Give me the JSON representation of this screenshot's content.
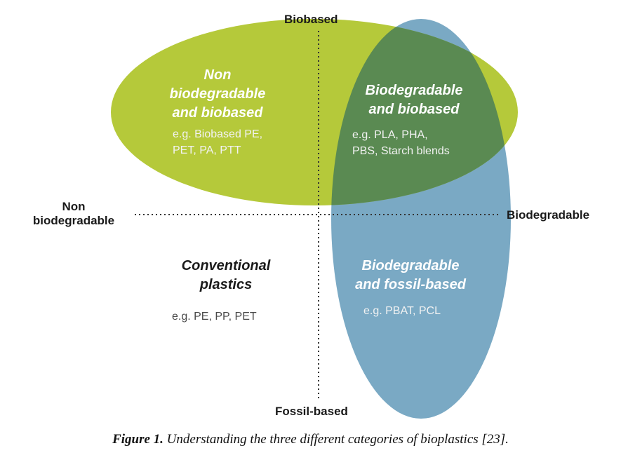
{
  "axes": {
    "top": "Biobased",
    "bottom": "Fossil-based",
    "left_line1": "Non",
    "left_line2": "biodegradable",
    "right": "Biodegradable"
  },
  "quadrants": {
    "top_left": {
      "title_lines": [
        "Non",
        "biodegradable",
        "and biobased"
      ],
      "example_lines": [
        "e.g. Biobased PE,",
        "PET, PA, PTT"
      ]
    },
    "top_right": {
      "title_lines": [
        "Biodegradable",
        "and biobased"
      ],
      "example_lines": [
        "e.g. PLA, PHA,",
        "PBS, Starch blends"
      ]
    },
    "bottom_left": {
      "title_lines": [
        "Conventional",
        "plastics"
      ],
      "example_lines": [
        "e.g. PE, PP, PET"
      ]
    },
    "bottom_right": {
      "title_lines": [
        "Biodegradable",
        "and fossil-based"
      ],
      "example_lines": [
        "e.g. PBAT, PCL"
      ]
    }
  },
  "colors": {
    "green_ellipse": "#b5c93a",
    "blue_ellipse": "#7aa9c4",
    "overlap": "#5a8a52",
    "axis_dots": "#333333"
  },
  "caption": {
    "label": "Figure 1.",
    "text": " Understanding the three different categories of bioplastics [23]."
  }
}
